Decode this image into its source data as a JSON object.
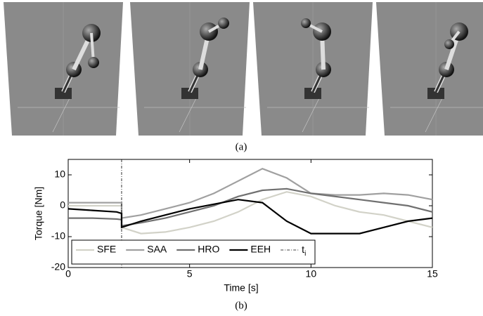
{
  "captions": [
    "(a)",
    "(b)"
  ],
  "chart_data": {
    "type": "line",
    "xlabel": "Time [s]",
    "ylabel": "Torque [Nm]",
    "x": [
      0,
      1,
      2,
      2.2,
      2.2,
      3,
      4,
      5,
      6,
      7,
      8,
      9,
      10,
      11,
      12,
      13,
      14,
      15
    ],
    "series": [
      {
        "name": "SFE",
        "color": "#d2d2c8",
        "values": [
          0,
          0,
          0,
          0,
          -7,
          -9,
          -8.5,
          -7,
          -5,
          -2,
          2,
          4.5,
          3,
          0,
          -2,
          -3,
          -5,
          -7
        ]
      },
      {
        "name": "SAA",
        "color": "#a0a0a0",
        "values": [
          1,
          1,
          1,
          1,
          -4,
          -3,
          -1,
          1,
          4,
          8,
          12,
          9,
          4,
          3.5,
          3.5,
          4,
          3.5,
          2
        ]
      },
      {
        "name": "HRO",
        "color": "#707070",
        "values": [
          -4,
          -4,
          -4.3,
          -4.5,
          -6.5,
          -5.5,
          -4,
          -2,
          0,
          3,
          5,
          5.5,
          4,
          3,
          2,
          1,
          0,
          -2
        ]
      },
      {
        "name": "EEH",
        "color": "#000000",
        "values": [
          -1,
          -1.5,
          -2,
          -2.5,
          -7,
          -5,
          -3,
          -1,
          0.5,
          2,
          1,
          -5,
          -9,
          -9,
          -9,
          -7,
          -5,
          -4
        ]
      }
    ],
    "vline": {
      "x": 2.2,
      "name": "t",
      "subscript": "i"
    },
    "xlim": [
      0,
      15
    ],
    "xticks": [
      0,
      5,
      10,
      15
    ],
    "ylim": [
      -20,
      15
    ],
    "yticks": [
      -20,
      -10,
      0,
      10
    ],
    "legend": "lower-left"
  }
}
